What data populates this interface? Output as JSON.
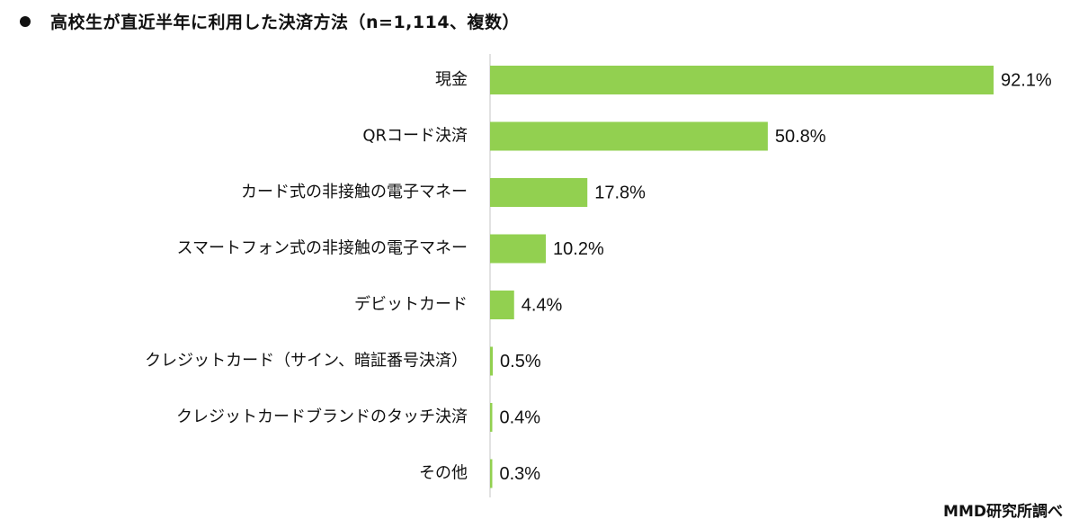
{
  "title": "高校生が直近半年に利用した決済方法（n=1,114、複数）",
  "source": "MMD研究所調べ",
  "colors": {
    "bar": "#92d050",
    "axis": "#d9d9d9",
    "text": "#111111"
  },
  "chart_data": {
    "type": "bar",
    "orientation": "horizontal",
    "categories": [
      "現金",
      "QRコード決済",
      "カード式の非接触の電子マネー",
      "スマートフォン式の非接触の電子マネー",
      "デビットカード",
      "クレジットカード（サイン、暗証番号決済）",
      "クレジットカードブランドのタッチ決済",
      "その他"
    ],
    "values": [
      92.1,
      50.8,
      17.8,
      10.2,
      4.4,
      0.5,
      0.4,
      0.3
    ],
    "data_labels": [
      "92.1%",
      "50.8%",
      "17.8%",
      "10.2%",
      "4.4%",
      "0.5%",
      "0.4%",
      "0.3%"
    ],
    "xlim": [
      0,
      92.1
    ],
    "grid": false,
    "legend": "none"
  }
}
